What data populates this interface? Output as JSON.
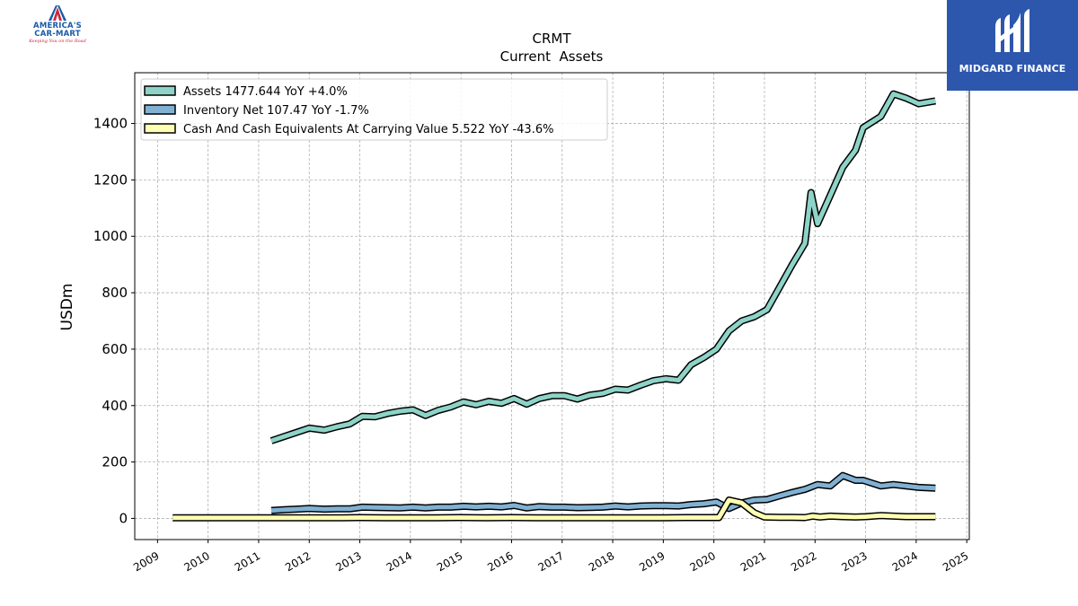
{
  "header": {
    "logo_left_line1": "AMERICA'S",
    "logo_left_line2": "CAR-MART",
    "logo_left_tagline": "Keeping You on the Road",
    "logo_right_text": "MIDGARD FINANCE"
  },
  "colors": {
    "assets": "#8dd3c7",
    "inventory": "#80b1d3",
    "cash": "#ffffb3",
    "logo_blue": "#2c57ad",
    "logo_red": "#c8283a"
  },
  "chart_data": {
    "type": "line",
    "title": "CRMT",
    "subtitle": "Current  Assets",
    "xlabel": "",
    "ylabel": "USDm",
    "xlim": [
      2008.55,
      2025.05
    ],
    "ylim": [
      -75,
      1580
    ],
    "x_ticks": [
      "2009",
      "2010",
      "2011",
      "2012",
      "2013",
      "2014",
      "2015",
      "2016",
      "2017",
      "2018",
      "2019",
      "2020",
      "2021",
      "2022",
      "2023",
      "2024",
      "2025"
    ],
    "y_ticks": [
      0,
      200,
      400,
      600,
      800,
      1000,
      1200,
      1400
    ],
    "grid": true,
    "legend_position": "top-left",
    "series": [
      {
        "name": "Assets  1477.644 YoY +4.0%",
        "color": "#8dd3c7",
        "x": [
          2011.25,
          2011.5,
          2011.75,
          2012.0,
          2012.3,
          2012.55,
          2012.8,
          2013.05,
          2013.3,
          2013.55,
          2013.8,
          2014.05,
          2014.3,
          2014.55,
          2014.8,
          2015.05,
          2015.3,
          2015.55,
          2015.8,
          2016.05,
          2016.3,
          2016.55,
          2016.8,
          2017.05,
          2017.3,
          2017.55,
          2017.8,
          2018.05,
          2018.3,
          2018.55,
          2018.8,
          2019.05,
          2019.3,
          2019.55,
          2019.8,
          2020.05,
          2020.3,
          2020.55,
          2020.8,
          2021.05,
          2021.3,
          2021.55,
          2021.8,
          2021.92,
          2022.05,
          2022.3,
          2022.55,
          2022.8,
          2022.95,
          2023.3,
          2023.55,
          2023.8,
          2024.05,
          2024.38
        ],
        "y": [
          275,
          290,
          305,
          320,
          313,
          325,
          335,
          362,
          360,
          372,
          380,
          385,
          365,
          383,
          395,
          413,
          403,
          415,
          408,
          425,
          405,
          425,
          435,
          435,
          423,
          437,
          443,
          458,
          455,
          472,
          488,
          495,
          490,
          545,
          570,
          600,
          665,
          700,
          715,
          740,
          820,
          900,
          975,
          1155,
          1045,
          1145,
          1245,
          1305,
          1385,
          1425,
          1505,
          1490,
          1470,
          1480
        ]
      },
      {
        "name": "Inventory Net  107.47 YoY -1.7%",
        "color": "#80b1d3",
        "x": [
          2011.25,
          2011.5,
          2011.75,
          2012.0,
          2012.3,
          2012.55,
          2012.8,
          2013.05,
          2013.3,
          2013.55,
          2013.8,
          2014.05,
          2014.3,
          2014.55,
          2014.8,
          2015.05,
          2015.3,
          2015.55,
          2015.8,
          2016.05,
          2016.3,
          2016.55,
          2016.8,
          2017.05,
          2017.3,
          2017.55,
          2017.8,
          2018.05,
          2018.3,
          2018.55,
          2018.8,
          2019.05,
          2019.3,
          2019.55,
          2019.8,
          2020.05,
          2020.3,
          2020.55,
          2020.8,
          2021.05,
          2021.3,
          2021.55,
          2021.8,
          2022.05,
          2022.3,
          2022.55,
          2022.8,
          2022.95,
          2023.3,
          2023.55,
          2023.8,
          2024.05,
          2024.38
        ],
        "y": [
          28,
          31,
          33,
          35,
          33,
          34,
          34,
          40,
          39,
          38,
          37,
          40,
          37,
          40,
          40,
          43,
          41,
          43,
          41,
          46,
          37,
          42,
          40,
          40,
          38,
          39,
          40,
          44,
          41,
          44,
          45,
          45,
          44,
          49,
          52,
          58,
          35,
          55,
          65,
          67,
          80,
          92,
          103,
          120,
          115,
          152,
          135,
          135,
          115,
          120,
          115,
          110,
          107
        ]
      },
      {
        "name": "Cash And Cash Equivalents At Carrying Value  5.522 YoY -43.6%",
        "color": "#ffffb3",
        "x": [
          2009.3,
          2010.0,
          2010.5,
          2011.0,
          2011.5,
          2012.0,
          2012.5,
          2013.0,
          2013.5,
          2014.0,
          2014.5,
          2015.0,
          2015.5,
          2016.0,
          2016.5,
          2017.0,
          2017.5,
          2018.0,
          2018.5,
          2019.0,
          2019.5,
          2020.0,
          2020.1,
          2020.3,
          2020.55,
          2020.8,
          2021.0,
          2021.3,
          2021.55,
          2021.8,
          2021.95,
          2022.1,
          2022.3,
          2022.55,
          2022.8,
          2023.0,
          2023.3,
          2023.55,
          2023.8,
          2024.05,
          2024.38
        ],
        "y": [
          2,
          2,
          2,
          2,
          2,
          2,
          2,
          3,
          2,
          2,
          2,
          3,
          2,
          3,
          2,
          2,
          2,
          2,
          2,
          2,
          3,
          3,
          3,
          65,
          55,
          20,
          5,
          4,
          4,
          3,
          8,
          5,
          8,
          6,
          5,
          6,
          10,
          8,
          6,
          6,
          6
        ]
      }
    ]
  }
}
